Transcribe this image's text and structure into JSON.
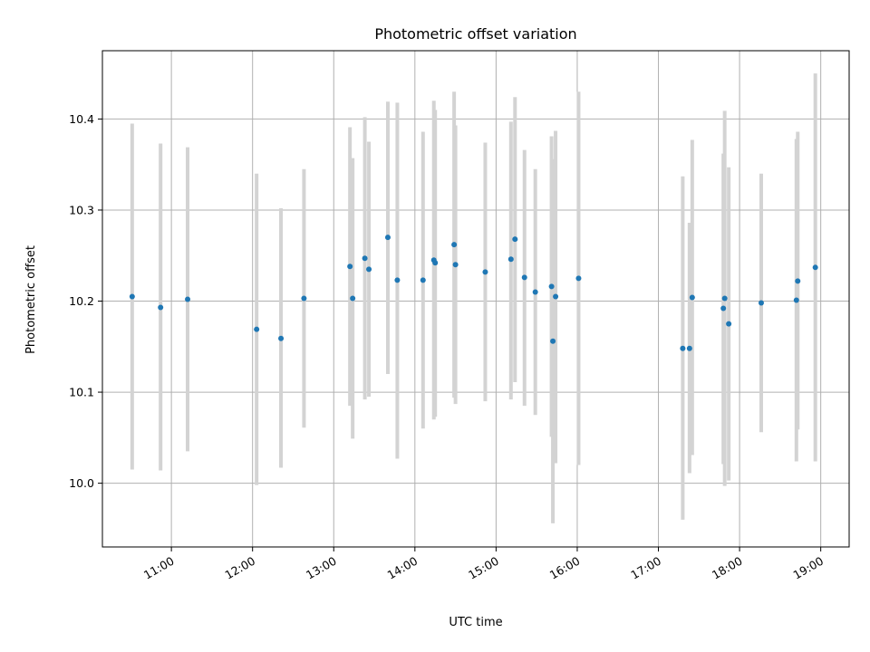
{
  "chart_data": {
    "type": "scatter",
    "title": "Photometric offset variation",
    "xlabel": "UTC time",
    "ylabel": "Photometric offset",
    "x_ticks": [
      "11:00",
      "12:00",
      "13:00",
      "14:00",
      "15:00",
      "16:00",
      "17:00",
      "18:00",
      "19:00"
    ],
    "y_ticks": [
      "10.0",
      "10.1",
      "10.2",
      "10.3",
      "10.4"
    ],
    "xlim": [
      "10:09",
      "19:21"
    ],
    "ylim": [
      9.93,
      10.475
    ],
    "grid": true,
    "colors": {
      "marker": "#1f77b4",
      "errorbar": "#d3d3d3"
    },
    "points": [
      {
        "t": "10:31",
        "y": 10.205,
        "lo": 10.015,
        "hi": 10.395
      },
      {
        "t": "10:52",
        "y": 10.193,
        "lo": 10.014,
        "hi": 10.373
      },
      {
        "t": "11:12",
        "y": 10.202,
        "lo": 10.035,
        "hi": 10.369
      },
      {
        "t": "12:03",
        "y": 10.169,
        "lo": 9.998,
        "hi": 10.34
      },
      {
        "t": "12:21",
        "y": 10.159,
        "lo": 10.017,
        "hi": 10.302
      },
      {
        "t": "12:38",
        "y": 10.203,
        "lo": 10.061,
        "hi": 10.345
      },
      {
        "t": "13:12",
        "y": 10.238,
        "lo": 10.085,
        "hi": 10.391
      },
      {
        "t": "13:14",
        "y": 10.203,
        "lo": 10.049,
        "hi": 10.357
      },
      {
        "t": "13:23",
        "y": 10.247,
        "lo": 10.092,
        "hi": 10.402
      },
      {
        "t": "13:26",
        "y": 10.235,
        "lo": 10.095,
        "hi": 10.375
      },
      {
        "t": "13:40",
        "y": 10.27,
        "lo": 10.12,
        "hi": 10.419
      },
      {
        "t": "13:47",
        "y": 10.223,
        "lo": 10.027,
        "hi": 10.418
      },
      {
        "t": "14:06",
        "y": 10.223,
        "lo": 10.06,
        "hi": 10.386
      },
      {
        "t": "14:14",
        "y": 10.245,
        "lo": 10.07,
        "hi": 10.42
      },
      {
        "t": "14:15",
        "y": 10.242,
        "lo": 10.073,
        "hi": 10.41
      },
      {
        "t": "14:29",
        "y": 10.262,
        "lo": 10.094,
        "hi": 10.43
      },
      {
        "t": "14:30",
        "y": 10.24,
        "lo": 10.087,
        "hi": 10.393
      },
      {
        "t": "14:52",
        "y": 10.232,
        "lo": 10.09,
        "hi": 10.374
      },
      {
        "t": "15:11",
        "y": 10.246,
        "lo": 10.092,
        "hi": 10.397
      },
      {
        "t": "15:14",
        "y": 10.268,
        "lo": 10.111,
        "hi": 10.424
      },
      {
        "t": "15:21",
        "y": 10.226,
        "lo": 10.085,
        "hi": 10.366
      },
      {
        "t": "15:29",
        "y": 10.21,
        "lo": 10.075,
        "hi": 10.345
      },
      {
        "t": "15:41",
        "y": 10.216,
        "lo": 10.051,
        "hi": 10.381
      },
      {
        "t": "15:42",
        "y": 10.156,
        "lo": 9.956,
        "hi": 10.356
      },
      {
        "t": "15:44",
        "y": 10.205,
        "lo": 10.022,
        "hi": 10.387
      },
      {
        "t": "16:01",
        "y": 10.225,
        "lo": 10.02,
        "hi": 10.43
      },
      {
        "t": "17:18",
        "y": 10.148,
        "lo": 9.96,
        "hi": 10.337
      },
      {
        "t": "17:23",
        "y": 10.148,
        "lo": 10.011,
        "hi": 10.286
      },
      {
        "t": "17:25",
        "y": 10.204,
        "lo": 10.031,
        "hi": 10.377
      },
      {
        "t": "17:48",
        "y": 10.192,
        "lo": 10.021,
        "hi": 10.362
      },
      {
        "t": "17:49",
        "y": 10.203,
        "lo": 9.997,
        "hi": 10.409
      },
      {
        "t": "17:52",
        "y": 10.175,
        "lo": 10.003,
        "hi": 10.347
      },
      {
        "t": "18:16",
        "y": 10.198,
        "lo": 10.056,
        "hi": 10.34
      },
      {
        "t": "18:42",
        "y": 10.201,
        "lo": 10.024,
        "hi": 10.378
      },
      {
        "t": "18:43",
        "y": 10.222,
        "lo": 10.059,
        "hi": 10.386
      },
      {
        "t": "18:56",
        "y": 10.237,
        "lo": 10.024,
        "hi": 10.45
      }
    ]
  }
}
